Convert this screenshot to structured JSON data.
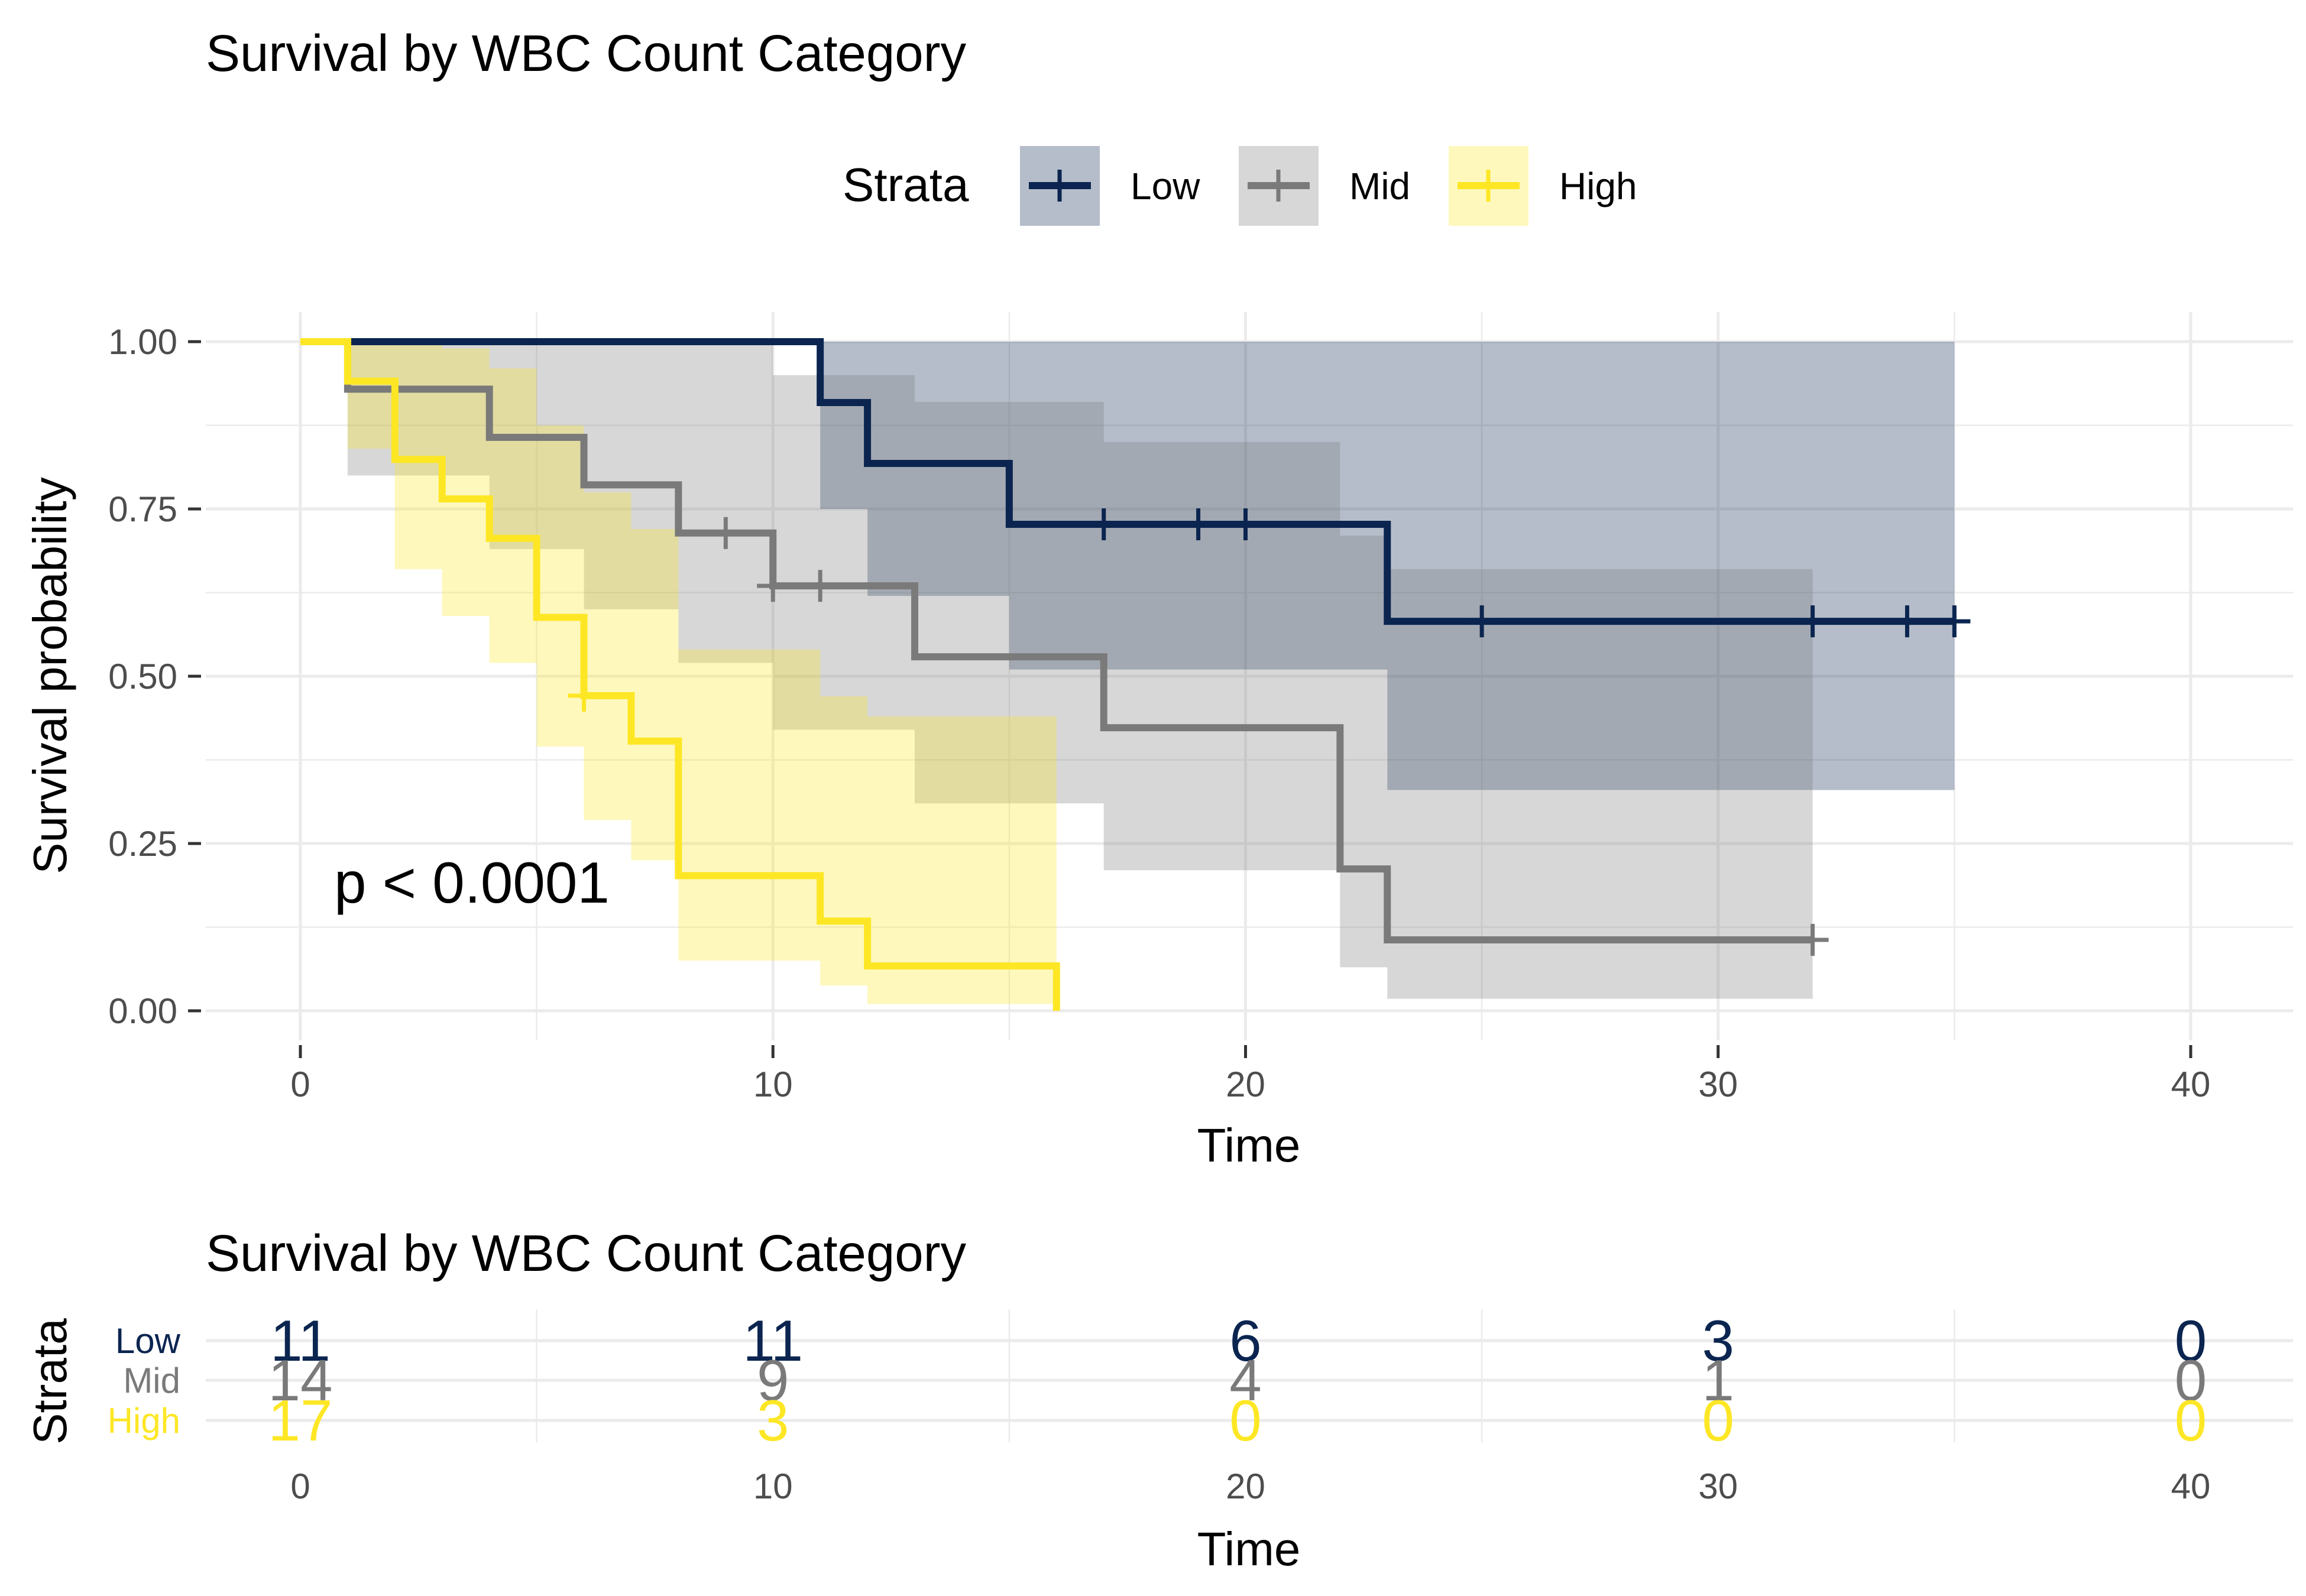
{
  "chart_data": [
    {
      "type": "line",
      "subtype": "kaplan-meier",
      "title": "Survival by WBC Count Category",
      "xlabel": "Time",
      "ylabel": "Survival probability",
      "xlim": [
        0,
        40
      ],
      "ylim": [
        0,
        1
      ],
      "xticks": [
        0,
        10,
        20,
        30,
        40
      ],
      "xtick_labels": [
        "0",
        "10",
        "20",
        "30",
        "40"
      ],
      "yticks": [
        0,
        0.25,
        0.5,
        0.75,
        1
      ],
      "ytick_labels": [
        "0.00",
        "0.25",
        "0.50",
        "0.75",
        "1.00"
      ],
      "grid": true,
      "legend": {
        "title": "Strata",
        "position": "top",
        "entries": [
          "Low",
          "Mid",
          "High"
        ]
      },
      "annotation": "p < 0.0001",
      "series": [
        {
          "name": "Low",
          "color": "#0b2550",
          "steps": [
            [
              0,
              1.0
            ],
            [
              11,
              0.909
            ],
            [
              12,
              0.818
            ],
            [
              15,
              0.727
            ],
            [
              23,
              0.582
            ],
            [
              35,
              0.582
            ]
          ],
          "ci": [
            {
              "x": 0,
              "lower": 1.0,
              "upper": 1.0
            },
            {
              "x": 11,
              "lower": 0.75,
              "upper": 1.0
            },
            {
              "x": 12,
              "lower": 0.62,
              "upper": 1.0
            },
            {
              "x": 15,
              "lower": 0.51,
              "upper": 1.0
            },
            {
              "x": 23,
              "lower": 0.33,
              "upper": 1.0
            },
            {
              "x": 35,
              "lower": 0.33,
              "upper": 1.0
            }
          ],
          "censor_times": [
            17,
            19,
            20,
            25,
            32,
            34,
            35
          ]
        },
        {
          "name": "Mid",
          "color": "#7a7a7a",
          "steps": [
            [
              0,
              1.0
            ],
            [
              1,
              0.929
            ],
            [
              4,
              0.857
            ],
            [
              6,
              0.786
            ],
            [
              8,
              0.714
            ],
            [
              10,
              0.635
            ],
            [
              13,
              0.529
            ],
            [
              17,
              0.423
            ],
            [
              22,
              0.212
            ],
            [
              23,
              0.106
            ],
            [
              32,
              0.106
            ]
          ],
          "ci": [
            {
              "x": 0,
              "lower": 1.0,
              "upper": 1.0
            },
            {
              "x": 1,
              "lower": 0.8,
              "upper": 1.0
            },
            {
              "x": 4,
              "lower": 0.69,
              "upper": 1.0
            },
            {
              "x": 6,
              "lower": 0.6,
              "upper": 1.0
            },
            {
              "x": 8,
              "lower": 0.52,
              "upper": 1.0
            },
            {
              "x": 10,
              "lower": 0.42,
              "upper": 0.95
            },
            {
              "x": 13,
              "lower": 0.31,
              "upper": 0.91
            },
            {
              "x": 17,
              "lower": 0.21,
              "upper": 0.85
            },
            {
              "x": 22,
              "lower": 0.065,
              "upper": 0.71
            },
            {
              "x": 23,
              "lower": 0.018,
              "upper": 0.66
            },
            {
              "x": 32,
              "lower": 0.018,
              "upper": 0.66
            }
          ],
          "censor_times": [
            9,
            10,
            11,
            32
          ]
        },
        {
          "name": "High",
          "color": "#fde725",
          "steps": [
            [
              0,
              1.0
            ],
            [
              1,
              0.941
            ],
            [
              2,
              0.824
            ],
            [
              3,
              0.765
            ],
            [
              4,
              0.706
            ],
            [
              5,
              0.588
            ],
            [
              6,
              0.471
            ],
            [
              7,
              0.403
            ],
            [
              8,
              0.202
            ],
            [
              11,
              0.134
            ],
            [
              12,
              0.067
            ],
            [
              16,
              0.0
            ]
          ],
          "ci": [
            {
              "x": 0,
              "lower": 1.0,
              "upper": 1.0
            },
            {
              "x": 1,
              "lower": 0.84,
              "upper": 1.0
            },
            {
              "x": 2,
              "lower": 0.66,
              "upper": 1.0
            },
            {
              "x": 3,
              "lower": 0.59,
              "upper": 0.99
            },
            {
              "x": 4,
              "lower": 0.52,
              "upper": 0.96
            },
            {
              "x": 5,
              "lower": 0.395,
              "upper": 0.875
            },
            {
              "x": 6,
              "lower": 0.285,
              "upper": 0.775
            },
            {
              "x": 7,
              "lower": 0.225,
              "upper": 0.72
            },
            {
              "x": 8,
              "lower": 0.075,
              "upper": 0.54
            },
            {
              "x": 11,
              "lower": 0.038,
              "upper": 0.47
            },
            {
              "x": 12,
              "lower": 0.01,
              "upper": 0.44
            },
            {
              "x": 16,
              "lower": 0.01,
              "upper": 0.44
            }
          ],
          "censor_times": [
            6
          ]
        }
      ]
    },
    {
      "type": "table",
      "subtype": "risk-table",
      "title": "Survival by WBC Count Category",
      "xlabel": "Time",
      "ylabel": "Strata",
      "xlim": [
        0,
        40
      ],
      "xticks": [
        0,
        10,
        20,
        30,
        40
      ],
      "xtick_labels": [
        "0",
        "10",
        "20",
        "30",
        "40"
      ],
      "rows": [
        {
          "name": "Low",
          "color": "#0b2550",
          "counts": [
            "11",
            "11",
            "6",
            "3",
            "0"
          ]
        },
        {
          "name": "Mid",
          "color": "#7a7a7a",
          "counts": [
            "14",
            "9",
            "4",
            "1",
            "0"
          ]
        },
        {
          "name": "High",
          "color": "#fde725",
          "counts": [
            "17",
            "3",
            "0",
            "0",
            "0"
          ]
        }
      ]
    }
  ]
}
